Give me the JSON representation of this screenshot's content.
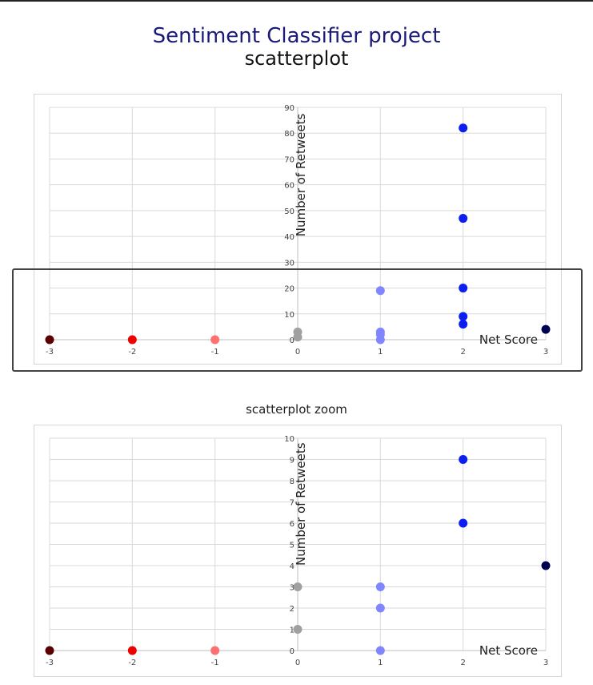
{
  "header": {
    "title": "Sentiment Classifier project",
    "subtitle": "scatterplot"
  },
  "zoom_header": {
    "title": "scatterplot zoom"
  },
  "colors": {
    "-3": "#5a0000",
    "-2": "#ee0000",
    "-1": "#ff7070",
    "0": "#a0a0a0",
    "1": "#7f86ff",
    "2": "#0a1ff0",
    "3": "#000050"
  },
  "chart_data": [
    {
      "type": "scatter",
      "title": "",
      "xlabel": "Net Score",
      "ylabel": "Number of Retweets",
      "xlim": [
        -3,
        3
      ],
      "ylim": [
        0,
        90
      ],
      "xticks": [
        "-3",
        "-2",
        "-1",
        "0",
        "1",
        "2",
        "3"
      ],
      "yticks": [
        "0",
        "10",
        "20",
        "30",
        "40",
        "50",
        "60",
        "70",
        "80",
        "90"
      ],
      "grid": true,
      "points": [
        {
          "x": -3,
          "y": 0
        },
        {
          "x": -2,
          "y": 0
        },
        {
          "x": -1,
          "y": 0
        },
        {
          "x": 0,
          "y": 1
        },
        {
          "x": 0,
          "y": 3
        },
        {
          "x": 1,
          "y": 0
        },
        {
          "x": 1,
          "y": 2
        },
        {
          "x": 1,
          "y": 3
        },
        {
          "x": 1,
          "y": 19
        },
        {
          "x": 2,
          "y": 6
        },
        {
          "x": 2,
          "y": 9
        },
        {
          "x": 2,
          "y": 20
        },
        {
          "x": 2,
          "y": 47
        },
        {
          "x": 2,
          "y": 82
        },
        {
          "x": 3,
          "y": 4
        }
      ]
    },
    {
      "type": "scatter",
      "title": "scatterplot zoom",
      "xlabel": "Net Score",
      "ylabel": "Number of Retweets",
      "xlim": [
        -3,
        3
      ],
      "ylim": [
        0,
        10
      ],
      "xticks": [
        "-3",
        "-2",
        "-1",
        "0",
        "1",
        "2",
        "3"
      ],
      "yticks": [
        "0",
        "1",
        "2",
        "3",
        "4",
        "5",
        "6",
        "7",
        "8",
        "9",
        "10"
      ],
      "grid": true,
      "points": [
        {
          "x": -3,
          "y": 0
        },
        {
          "x": -2,
          "y": 0
        },
        {
          "x": -1,
          "y": 0
        },
        {
          "x": 0,
          "y": 1
        },
        {
          "x": 0,
          "y": 3
        },
        {
          "x": 1,
          "y": 0
        },
        {
          "x": 1,
          "y": 2
        },
        {
          "x": 1,
          "y": 3
        },
        {
          "x": 2,
          "y": 6
        },
        {
          "x": 2,
          "y": 9
        },
        {
          "x": 3,
          "y": 4
        }
      ]
    }
  ]
}
